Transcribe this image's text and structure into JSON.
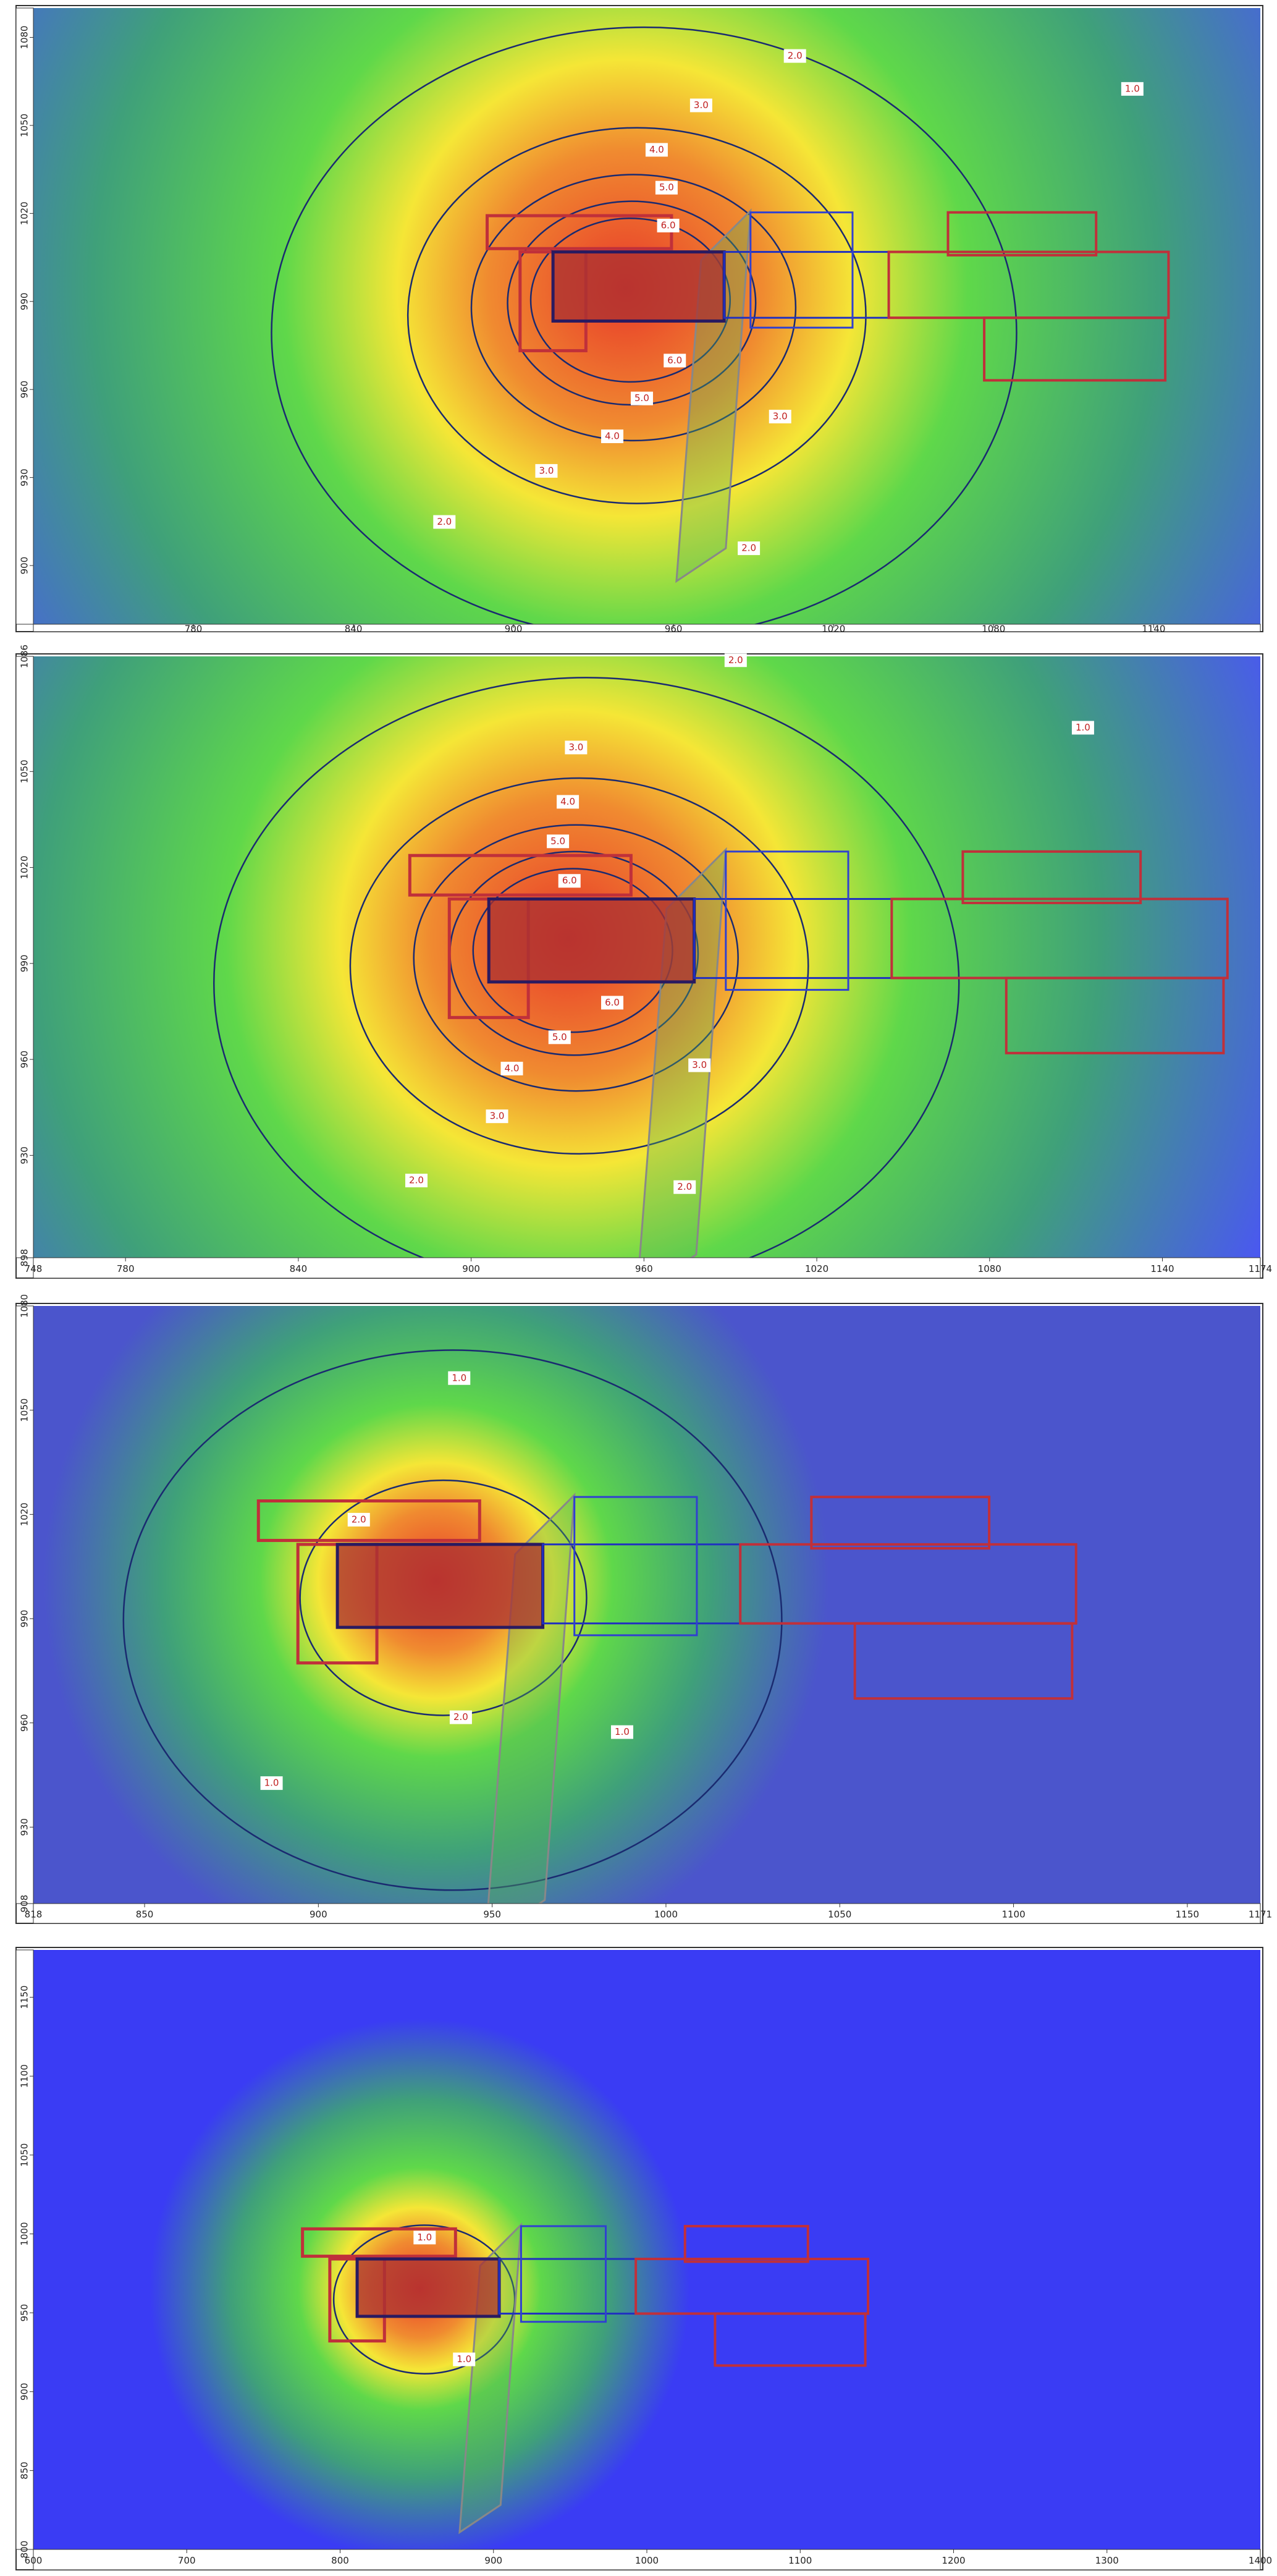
{
  "chart_data": [
    {
      "type": "contour",
      "xlim": [
        720,
        1180
      ],
      "xticks": [
        780,
        840,
        900,
        960,
        1020,
        1080,
        1140
      ],
      "ylim": [
        880,
        1090
      ],
      "yticks": [
        900,
        930,
        960,
        990,
        1020,
        1050,
        1080
      ],
      "contour_labels": [
        {
          "value": 2,
          "label": "2.0"
        },
        {
          "value": 1,
          "label": "1.0"
        },
        {
          "value": 3,
          "label": "3.0"
        },
        {
          "value": 4,
          "label": "4.0"
        },
        {
          "value": 5,
          "label": "5.0"
        },
        {
          "value": 6,
          "label": "6.0"
        },
        {
          "value": 6,
          "label": "6.0"
        },
        {
          "value": 5,
          "label": "5.0"
        },
        {
          "value": 4,
          "label": "4.0"
        },
        {
          "value": 3,
          "label": "3.0"
        },
        {
          "value": 3,
          "label": "3.0"
        },
        {
          "value": 2,
          "label": "2.0"
        },
        {
          "value": 2,
          "label": "2.0"
        }
      ]
    },
    {
      "type": "contour",
      "xlim": [
        748,
        1174
      ],
      "xticks": [
        748,
        780,
        840,
        900,
        960,
        1020,
        1080,
        1140,
        1174
      ],
      "ylim": [
        898,
        1086
      ],
      "yticks": [
        898,
        930,
        960,
        990,
        1020,
        1050,
        1086
      ],
      "contour_labels": [
        {
          "value": 2,
          "label": "2.0"
        },
        {
          "value": 1,
          "label": "1.0"
        },
        {
          "value": 3,
          "label": "3.0"
        },
        {
          "value": 4,
          "label": "4.0"
        },
        {
          "value": 5,
          "label": "5.0"
        },
        {
          "value": 6,
          "label": "6.0"
        },
        {
          "value": 6,
          "label": "6.0"
        },
        {
          "value": 5,
          "label": "5.0"
        },
        {
          "value": 4,
          "label": "4.0"
        },
        {
          "value": 3,
          "label": "3.0"
        },
        {
          "value": 3,
          "label": "3.0"
        },
        {
          "value": 2,
          "label": "2.0"
        },
        {
          "value": 2,
          "label": "2.0"
        }
      ]
    },
    {
      "type": "contour",
      "xlim": [
        818,
        1171
      ],
      "xticks": [
        818,
        850,
        900,
        950,
        1000,
        1050,
        1100,
        1150,
        1171
      ],
      "ylim": [
        908,
        1080
      ],
      "yticks": [
        908,
        930,
        960,
        990,
        1020,
        1050,
        1080
      ],
      "contour_labels": [
        {
          "value": 1,
          "label": "1.0"
        },
        {
          "value": 2,
          "label": "2.0"
        },
        {
          "value": 2,
          "label": "2.0"
        },
        {
          "value": 1,
          "label": "1.0"
        },
        {
          "value": 1,
          "label": "1.0"
        }
      ]
    },
    {
      "type": "contour",
      "xlim": [
        600,
        1400
      ],
      "xticks": [
        600,
        700,
        800,
        900,
        1000,
        1100,
        1200,
        1300,
        1400
      ],
      "ylim": [
        800,
        1180
      ],
      "yticks": [
        800,
        850,
        900,
        950,
        1000,
        1050,
        1100,
        1150
      ],
      "contour_labels": [
        {
          "value": 1,
          "label": "1.0"
        },
        {
          "value": 1,
          "label": "1.0"
        }
      ]
    }
  ]
}
